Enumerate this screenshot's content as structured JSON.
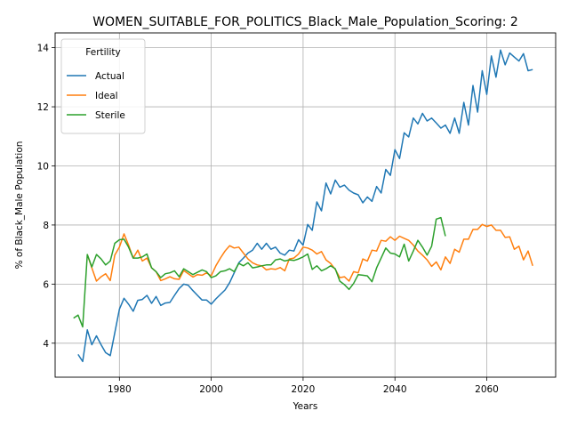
{
  "chart_data": {
    "type": "line",
    "title": "WOMEN_SUITABLE_FOR_POLITICS_Black_Male_Population_Scoring: 2",
    "xlabel": "Years",
    "ylabel": "% of Black_Male Population",
    "xlim": [
      1966,
      2075
    ],
    "ylim": [
      2.85,
      14.5
    ],
    "xticks": [
      1980,
      2000,
      2020,
      2040,
      2060
    ],
    "yticks": [
      4,
      6,
      8,
      10,
      12,
      14
    ],
    "grid": true,
    "legend": {
      "title": "Fertility",
      "placement": "top-left"
    },
    "series": [
      {
        "name": "Actual",
        "color": "#1f77b4",
        "x": [
          1971,
          1972,
          1973,
          1974,
          1975,
          1976,
          1977,
          1978,
          1979,
          1980,
          1981,
          1982,
          1983,
          1984,
          1985,
          1986,
          1987,
          1988,
          1989,
          1990,
          1991,
          1992,
          1993,
          1994,
          1995,
          1996,
          1997,
          1998,
          1999,
          2000,
          2001,
          2002,
          2003,
          2004,
          2005,
          2006,
          2007,
          2008,
          2009,
          2010,
          2011,
          2012,
          2013,
          2014,
          2015,
          2016,
          2017,
          2018,
          2019,
          2020,
          2021,
          2022,
          2023,
          2024,
          2025,
          2026,
          2027,
          2028,
          2029,
          2030,
          2031,
          2032,
          2033,
          2034,
          2035,
          2036,
          2037,
          2038,
          2039,
          2040,
          2041,
          2042,
          2043,
          2044,
          2045,
          2046,
          2047,
          2048,
          2049,
          2050,
          2051,
          2052,
          2053,
          2054,
          2055,
          2056,
          2057,
          2058,
          2059,
          2060,
          2061,
          2062,
          2063,
          2064,
          2065,
          2066,
          2067,
          2068,
          2069,
          2070
        ],
        "y": [
          3.62,
          3.38,
          4.45,
          3.95,
          4.25,
          3.95,
          3.68,
          3.58,
          4.35,
          5.15,
          5.52,
          5.32,
          5.08,
          5.45,
          5.48,
          5.62,
          5.35,
          5.58,
          5.28,
          5.36,
          5.38,
          5.62,
          5.85,
          6.0,
          5.96,
          5.78,
          5.62,
          5.46,
          5.46,
          5.32,
          5.5,
          5.65,
          5.8,
          6.05,
          6.38,
          6.72,
          6.88,
          7.05,
          7.15,
          7.38,
          7.18,
          7.38,
          7.18,
          7.25,
          7.05,
          6.98,
          7.15,
          7.12,
          7.5,
          7.32,
          8.02,
          7.82,
          8.78,
          8.48,
          9.42,
          9.05,
          9.52,
          9.28,
          9.35,
          9.18,
          9.08,
          9.02,
          8.75,
          8.95,
          8.8,
          9.3,
          9.08,
          9.88,
          9.68,
          10.55,
          10.25,
          11.12,
          10.98,
          11.62,
          11.42,
          11.78,
          11.52,
          11.62,
          11.45,
          11.28,
          11.38,
          11.1,
          11.62,
          11.1,
          12.15,
          11.38,
          12.72,
          11.82,
          13.22,
          12.42,
          13.72,
          13.0,
          13.92,
          13.42,
          13.82,
          13.68,
          13.55,
          13.8,
          13.22,
          13.26
        ]
      },
      {
        "name": "Ideal",
        "color": "#ff7f0e",
        "x": [
          1973,
          1974,
          1975,
          1976,
          1977,
          1978,
          1979,
          1980,
          1981,
          1982,
          1983,
          1984,
          1985,
          1986,
          1987,
          1988,
          1989,
          1990,
          1991,
          1992,
          1993,
          1994,
          1995,
          1996,
          1997,
          1998,
          1999,
          2000,
          2001,
          2002,
          2003,
          2004,
          2005,
          2006,
          2007,
          2008,
          2009,
          2010,
          2011,
          2012,
          2013,
          2014,
          2015,
          2016,
          2017,
          2018,
          2019,
          2020,
          2021,
          2022,
          2023,
          2024,
          2025,
          2026,
          2027,
          2028,
          2029,
          2030,
          2031,
          2032,
          2033,
          2034,
          2035,
          2036,
          2037,
          2038,
          2039,
          2040,
          2041,
          2042,
          2043,
          2044,
          2045,
          2046,
          2047,
          2048,
          2049,
          2050,
          2051,
          2052,
          2053,
          2054,
          2055,
          2056,
          2057,
          2058,
          2059,
          2060,
          2061,
          2062,
          2063,
          2064,
          2065,
          2066,
          2067,
          2068,
          2069,
          2070
        ],
        "y": [
          7.0,
          6.55,
          6.1,
          6.25,
          6.35,
          6.12,
          6.98,
          7.25,
          7.7,
          7.32,
          6.88,
          7.15,
          6.78,
          6.88,
          6.55,
          6.42,
          6.12,
          6.18,
          6.25,
          6.18,
          6.16,
          6.46,
          6.35,
          6.24,
          6.32,
          6.3,
          6.38,
          6.28,
          6.62,
          6.88,
          7.12,
          7.3,
          7.22,
          7.25,
          7.05,
          6.85,
          6.72,
          6.65,
          6.62,
          6.48,
          6.52,
          6.5,
          6.56,
          6.45,
          6.85,
          6.88,
          7.02,
          7.25,
          7.22,
          7.15,
          7.02,
          7.1,
          6.82,
          6.7,
          6.5,
          6.22,
          6.25,
          6.1,
          6.42,
          6.38,
          6.85,
          6.78,
          7.15,
          7.12,
          7.48,
          7.45,
          7.6,
          7.48,
          7.62,
          7.55,
          7.48,
          7.32,
          7.12,
          6.98,
          6.82,
          6.6,
          6.75,
          6.48,
          6.92,
          6.7,
          7.18,
          7.08,
          7.52,
          7.52,
          7.85,
          7.85,
          8.02,
          7.95,
          8.0,
          7.82,
          7.82,
          7.58,
          7.6,
          7.18,
          7.28,
          6.82,
          7.12,
          6.62
        ]
      },
      {
        "name": "Sterile",
        "color": "#2ca02c",
        "x": [
          1970,
          1971,
          1972,
          1973,
          1974,
          1975,
          1976,
          1977,
          1978,
          1979,
          1980,
          1981,
          1982,
          1983,
          1984,
          1985,
          1986,
          1987,
          1988,
          1989,
          1990,
          1991,
          1992,
          1993,
          1994,
          1995,
          1996,
          1997,
          1998,
          1999,
          2000,
          2001,
          2002,
          2003,
          2004,
          2005,
          2006,
          2007,
          2008,
          2009,
          2010,
          2011,
          2012,
          2013,
          2014,
          2015,
          2016,
          2017,
          2018,
          2019,
          2020,
          2021,
          2022,
          2023,
          2024,
          2025,
          2026,
          2027,
          2028,
          2029,
          2030,
          2031,
          2032,
          2033,
          2034,
          2035,
          2036,
          2037,
          2038,
          2039,
          2040,
          2041,
          2042,
          2043,
          2044,
          2045,
          2046,
          2047,
          2048,
          2049,
          2050,
          2051
        ],
        "y": [
          4.85,
          4.95,
          4.55,
          7.0,
          6.58,
          7.0,
          6.85,
          6.65,
          6.78,
          7.38,
          7.5,
          7.52,
          7.25,
          6.88,
          6.88,
          6.92,
          7.02,
          6.55,
          6.42,
          6.22,
          6.35,
          6.38,
          6.45,
          6.25,
          6.52,
          6.42,
          6.32,
          6.4,
          6.48,
          6.42,
          6.22,
          6.28,
          6.42,
          6.45,
          6.52,
          6.42,
          6.7,
          6.62,
          6.72,
          6.55,
          6.58,
          6.62,
          6.65,
          6.65,
          6.82,
          6.85,
          6.78,
          6.82,
          6.8,
          6.85,
          6.92,
          7.02,
          6.5,
          6.62,
          6.45,
          6.52,
          6.62,
          6.52,
          6.1,
          5.98,
          5.82,
          6.02,
          6.32,
          6.3,
          6.28,
          6.08,
          6.55,
          6.88,
          7.22,
          7.05,
          7.02,
          6.92,
          7.35,
          6.78,
          7.12,
          7.48,
          7.25,
          6.98,
          7.28,
          8.2,
          8.25,
          7.62
        ]
      }
    ]
  }
}
